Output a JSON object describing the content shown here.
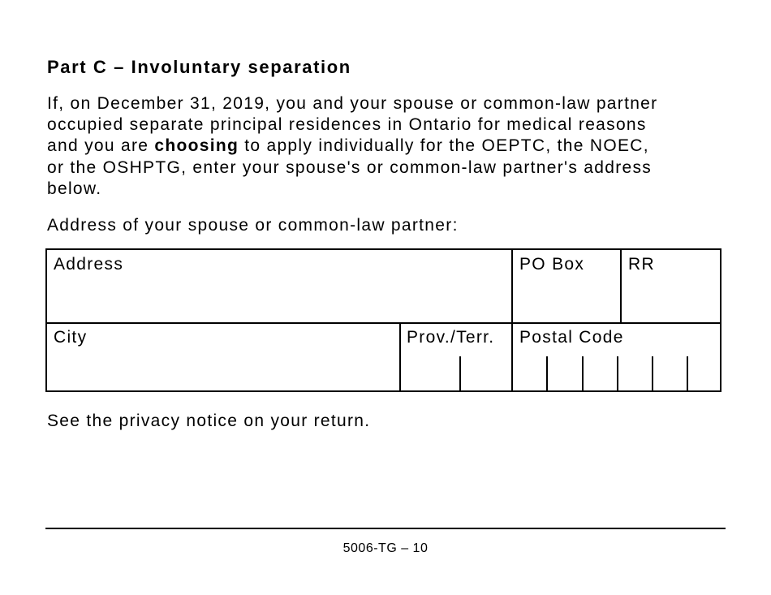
{
  "heading": "Part C – Involuntary separation",
  "paragraph": {
    "line1": "If, on December 31, 2019, you and your spouse or common-law partner",
    "line2": "occupied separate principal residences in Ontario for medical reasons",
    "line3_before": "and you are ",
    "line3_bold": "choosing",
    "line3_after": " to apply individually for the OEPTC, the NOEC,",
    "line4": "or the OSHPTG, enter your spouse's or common-law partner's address",
    "line5": "below."
  },
  "address_prompt": "Address of your spouse or common-law partner:",
  "form": {
    "address": "Address",
    "po_box": "PO Box",
    "rr": "RR",
    "city": "City",
    "prov_terr": "Prov./Terr.",
    "postal_code": "Postal Code"
  },
  "privacy_notice": "See the privacy notice on your return.",
  "footer": {
    "page_number": "5006-TG – 10"
  }
}
